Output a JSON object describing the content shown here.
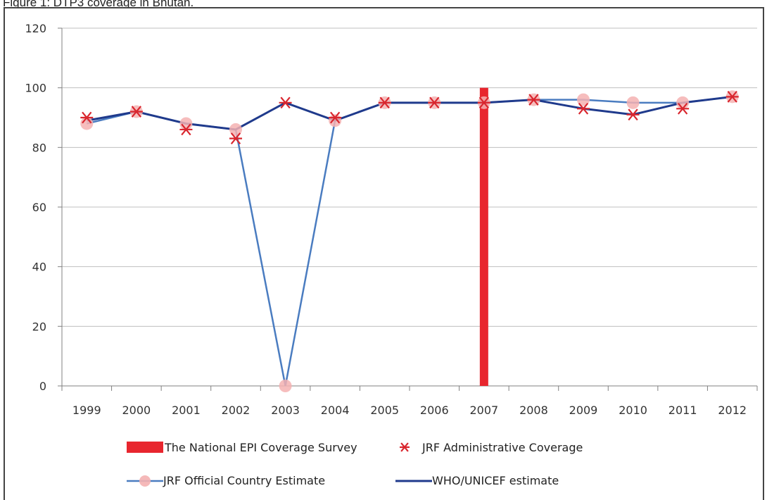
{
  "figure_title": "Figure 1: DTP3 coverage in Bhutan.",
  "colors": {
    "survey": "#e8262e",
    "admin": "#d9262e",
    "official_marker": "#f4b1b1",
    "official_line": "#4a7cc0",
    "who": "#1f3a8c",
    "grid": "#bfbfbf",
    "axis": "#808080"
  },
  "chart_data": {
    "type": "line",
    "title": "",
    "xlabel": "",
    "ylabel": "",
    "ylim": [
      0,
      120
    ],
    "yticks": [
      "0",
      "20",
      "40",
      "60",
      "80",
      "100",
      "120"
    ],
    "grid": "horizontal",
    "legend_placement": "bottom",
    "categories": [
      "1999",
      "2000",
      "2001",
      "2002",
      "2003",
      "2004",
      "2005",
      "2006",
      "2007",
      "2008",
      "2009",
      "2010",
      "2011",
      "2012"
    ],
    "series": [
      {
        "name": "The National EPI Coverage Survey",
        "kind": "bar",
        "category": "2007",
        "value": 100
      },
      {
        "name": "JRF Administrative Coverage",
        "kind": "marker",
        "values": [
          90,
          92,
          86,
          83,
          95,
          90,
          95,
          95,
          95,
          96,
          93,
          91,
          93,
          97
        ]
      },
      {
        "name": "JRF Official Country Estimate",
        "kind": "line-marker",
        "values": [
          88,
          92,
          88,
          86,
          0,
          89,
          95,
          95,
          95,
          96,
          96,
          95,
          95,
          97
        ]
      },
      {
        "name": "WHO/UNICEF estimate",
        "kind": "line",
        "values": [
          89,
          92,
          88,
          86,
          95,
          89,
          95,
          95,
          95,
          96,
          93,
          91,
          95,
          97
        ]
      }
    ]
  }
}
